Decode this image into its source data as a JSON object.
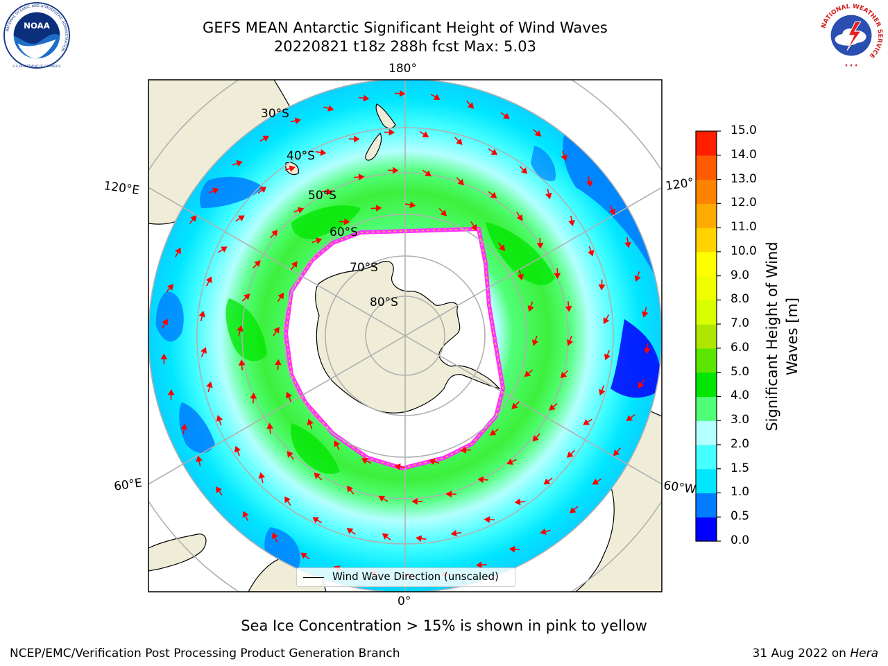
{
  "header": {
    "title_line1": "GEFS MEAN Antarctic Significant Height of Wind Waves",
    "title_line2": "20220821 t18z 288h fcst   Max: 5.03"
  },
  "logos": {
    "noaa_text": "NOAA",
    "noaa_ring_text": "NATIONAL OCEANIC AND ATMOSPHERIC ADMINISTRATION",
    "noaa_bottom_text": "U.S. DEPARTMENT OF COMMERCE",
    "nws_ring_text": "NATIONAL WEATHER SERVICE"
  },
  "map": {
    "projection": "south polar stereographic",
    "longitude_labels": {
      "top": "180°",
      "bottom": "0°",
      "left_upper": "120°E",
      "left_lower": "60°E",
      "right_upper": "120°",
      "right_lower": "60°W"
    },
    "latitude_labels": [
      "30°S",
      "40°S",
      "50°S",
      "60°S",
      "70°S",
      "80°S"
    ],
    "colors": {
      "land": "#efedd8",
      "sea_ice": "#ffffff",
      "ice_edge": "#ff33ff",
      "ice_edge_yellow": "#ffd21e",
      "graticule": "#b0b0b0",
      "arrows": "#ff0000"
    }
  },
  "colorbar": {
    "label": "Significant Height of Wind Waves [m]",
    "label_line1": "Significant Height of Wind",
    "label_line2": "Waves [m]",
    "ticks": [
      "0.0",
      "0.5",
      "1.0",
      "1.5",
      "2.0",
      "3.0",
      "4.0",
      "5.0",
      "6.0",
      "7.0",
      "8.0",
      "9.0",
      "10.0",
      "11.0",
      "12.0",
      "13.0",
      "14.0",
      "15.0"
    ],
    "colors": [
      "#0000ff",
      "#007dff",
      "#00e6ff",
      "#46ffff",
      "#b4ffff",
      "#50ff78",
      "#00e600",
      "#5ae600",
      "#afe600",
      "#d7ff00",
      "#f0ff00",
      "#ffff00",
      "#ffd200",
      "#ffaa00",
      "#ff8200",
      "#ff5a00",
      "#ff1e00"
    ]
  },
  "legend": {
    "label": "Wind Wave Direction (unscaled)"
  },
  "ice_note": "Sea Ice Concentration > 15% is shown in pink to yellow",
  "footer": {
    "left": "NCEP/EMC/Verification Post Processing Product Generation Branch",
    "right_date": "31 Aug 2022 on",
    "right_machine": "Hera"
  }
}
